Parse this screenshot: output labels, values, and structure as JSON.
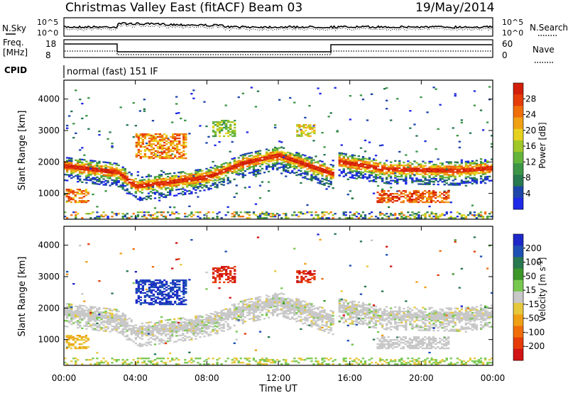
{
  "header": {
    "title": "Christmas Valley East (fitACF)",
    "beam": "Beam 03",
    "date": "19/May/2014"
  },
  "noise_panel": {
    "left_label": "N.Sky",
    "right_label": "N.Search",
    "left_ticks": [
      "10^5",
      "10^0"
    ],
    "right_ticks": [
      "10^5",
      "10^0"
    ]
  },
  "freq_panel": {
    "left_label_1": "Freq.",
    "left_label_2": "[MHz]",
    "right_label": "Nave",
    "left_ticks": [
      "18",
      "8"
    ],
    "right_ticks": [
      "60",
      "0"
    ]
  },
  "cpid": {
    "label": "CPID",
    "value": "normal (fast) 151 IF"
  },
  "chart_data": [
    {
      "type": "heatmap",
      "panel": "power",
      "ylabel": "Slant Range [km]",
      "y_ticks": [
        1000,
        2000,
        3000,
        4000
      ],
      "ylim": [
        180,
        4600
      ],
      "colorbar_label": "Power [dB]",
      "colorbar_ticks": [
        "4",
        "8",
        "12",
        "16",
        "20",
        "24",
        "28"
      ],
      "colors": [
        "#1e28e6",
        "#1e46aa",
        "#287850",
        "#3c9646",
        "#64b43c",
        "#a0c828",
        "#e6d21e",
        "#f0a014",
        "#f06e0a",
        "#e63c0a",
        "#d21e0a"
      ],
      "bands": [
        {
          "t": [
            0,
            3,
            4,
            8,
            10,
            12,
            15
          ],
          "r": [
            1850,
            1650,
            1200,
            1500,
            1950,
            2200,
            1600
          ]
        },
        {
          "t": [
            15.3,
            18,
            22,
            24
          ],
          "r": [
            2000,
            1750,
            1700,
            1800
          ]
        }
      ]
    },
    {
      "type": "heatmap",
      "panel": "velocity",
      "ylabel": "Slant Range [km]",
      "y_ticks": [
        1000,
        2000,
        3000,
        4000
      ],
      "ylim": [
        180,
        4600
      ],
      "colorbar_label": "Velocity [m s^-1]",
      "colorbar_ticks": [
        "200",
        "100",
        "50",
        "15",
        "-15",
        "-50",
        "-100",
        "-200"
      ],
      "colors": [
        "#1e28c8",
        "#1e50b4",
        "#287850",
        "#3c9628",
        "#78c850",
        "#c8c8c8",
        "#e6c83c",
        "#f0a014",
        "#f06e0a",
        "#e63c0a",
        "#d21414"
      ]
    }
  ],
  "x_axis": {
    "label": "Time UT",
    "ticks": [
      "00:00",
      "04:00",
      "08:00",
      "12:00",
      "16:00",
      "20:00",
      "00:00"
    ]
  }
}
